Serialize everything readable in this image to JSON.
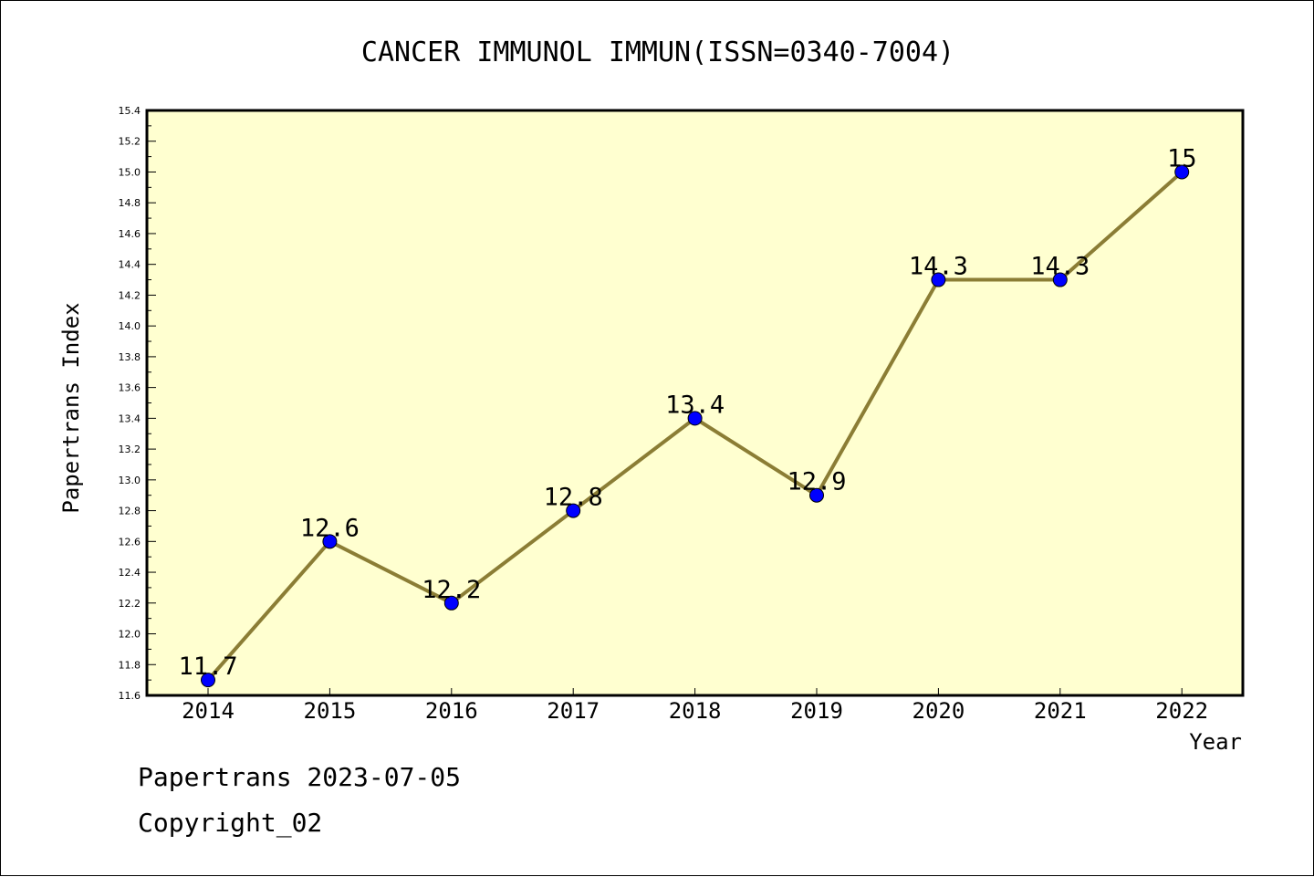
{
  "chart_data": {
    "type": "line",
    "title": "CANCER IMMUNOL IMMUN(ISSN=0340-7004)",
    "xlabel": "Year",
    "ylabel": "Papertrans Index",
    "x": [
      "2014",
      "2015",
      "2016",
      "2017",
      "2018",
      "2019",
      "2020",
      "2021",
      "2022"
    ],
    "values": [
      11.7,
      12.6,
      12.2,
      12.8,
      13.4,
      12.9,
      14.3,
      14.3,
      15
    ],
    "point_labels": [
      "11.7",
      "12.6",
      "12.2",
      "12.8",
      "13.4",
      "12.9",
      "14.3",
      "14.3",
      "15"
    ],
    "ylim": [
      11.6,
      15.4
    ],
    "y_ticks": [
      "11.6",
      "11.8",
      "12.0",
      "12.2",
      "12.4",
      "12.6",
      "12.8",
      "13.0",
      "13.2",
      "13.4",
      "13.6",
      "13.8",
      "14.0",
      "14.2",
      "14.4",
      "14.6",
      "14.8",
      "15.0",
      "15.2",
      "15.4"
    ],
    "grid": false,
    "colors": {
      "plot_background": "#ffffd0",
      "line": "#8b7d35",
      "marker": "#0000ff"
    }
  },
  "footer": {
    "date_line": "Papertrans 2023-07-05",
    "copyright_line": "Copyright_02"
  }
}
